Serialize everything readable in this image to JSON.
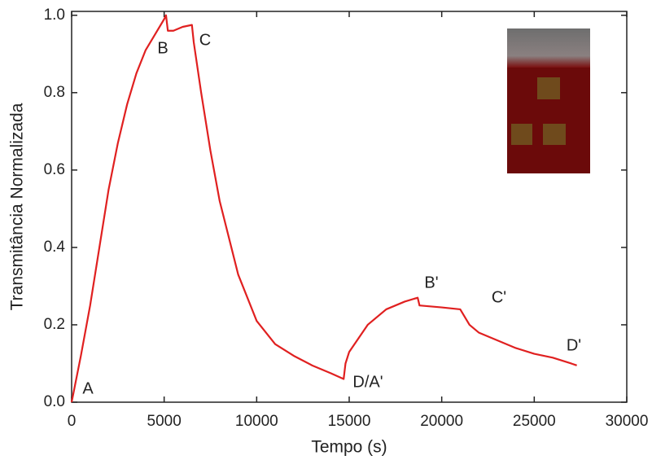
{
  "chart_data": {
    "type": "line",
    "x_label": "Tempo (s)",
    "y_label": "Transmitância Normalizada",
    "xlim": [
      0,
      30000
    ],
    "ylim": [
      0,
      1.01
    ],
    "xticks": [
      0,
      5000,
      10000,
      15000,
      20000,
      25000,
      30000
    ],
    "yticks": [
      {
        "value": 0,
        "label": "0.0"
      },
      0.2,
      0.4,
      0.6,
      0.8,
      {
        "value": 1,
        "label": "1.0"
      }
    ],
    "annotations": [
      "A",
      "B",
      "C",
      "D/A'",
      "B'",
      "C'",
      "D'"
    ],
    "x": [
      0,
      500,
      1000,
      1500,
      2000,
      2500,
      3000,
      3500,
      4000,
      4500,
      5000,
      5100,
      5200,
      5500,
      6000,
      6500,
      6600,
      7000,
      7500,
      8000,
      9000,
      10000,
      11000,
      12000,
      13000,
      14000,
      14700,
      14800,
      15000,
      16000,
      17000,
      18000,
      18700,
      18800,
      20000,
      21000,
      21500,
      22000,
      23000,
      24000,
      25000,
      26000,
      27000,
      27300
    ],
    "series": [
      {
        "name": "Transmitância",
        "color": "#e02020",
        "values": [
          0,
          0.12,
          0.25,
          0.4,
          0.55,
          0.67,
          0.77,
          0.85,
          0.91,
          0.95,
          0.99,
          1.0,
          0.96,
          0.96,
          0.97,
          0.975,
          0.93,
          0.8,
          0.65,
          0.52,
          0.33,
          0.21,
          0.15,
          0.12,
          0.095,
          0.075,
          0.06,
          0.1,
          0.13,
          0.2,
          0.24,
          0.26,
          0.27,
          0.25,
          0.245,
          0.24,
          0.2,
          0.18,
          0.16,
          0.14,
          0.125,
          0.115,
          0.1,
          0.095
        ]
      }
    ]
  }
}
